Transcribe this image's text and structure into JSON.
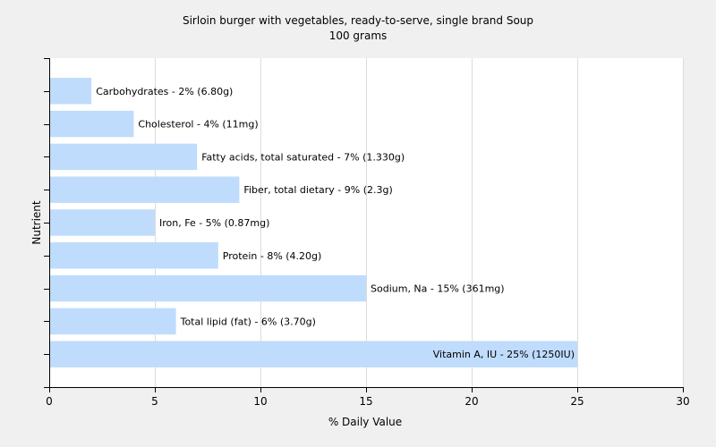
{
  "chart_data": {
    "type": "bar",
    "orientation": "horizontal",
    "title": "Sirloin burger with vegetables, ready-to-serve, single brand Soup",
    "subtitle": "100 grams",
    "xlabel": "% Daily Value",
    "ylabel": "Nutrient",
    "xlim": [
      0,
      30
    ],
    "xticks": [
      0,
      5,
      10,
      15,
      20,
      25,
      30
    ],
    "grid": true,
    "categories": [
      "Carbohydrates",
      "Cholesterol",
      "Fatty acids, total saturated",
      "Fiber, total dietary",
      "Iron, Fe",
      "Protein",
      "Sodium, Na",
      "Total lipid (fat)",
      "Vitamin A, IU"
    ],
    "values": [
      2,
      4,
      7,
      9,
      5,
      8,
      15,
      6,
      25
    ],
    "labels": [
      "Carbohydrates - 2% (6.80g)",
      "Cholesterol - 4% (11mg)",
      "Fatty acids, total saturated - 7% (1.330g)",
      "Fiber, total dietary - 9% (2.3g)",
      "Iron, Fe - 5% (0.87mg)",
      "Protein - 8% (4.20g)",
      "Sodium, Na - 15% (361mg)",
      "Total lipid (fat) - 6% (3.70g)",
      "Vitamin A, IU - 25% (1250IU)"
    ],
    "colors": {
      "bar": "#bfdcfc",
      "grid": "#dcdcdc",
      "axis": "#000000",
      "background": "#f0f0f0",
      "plot_background": "#ffffff"
    }
  }
}
